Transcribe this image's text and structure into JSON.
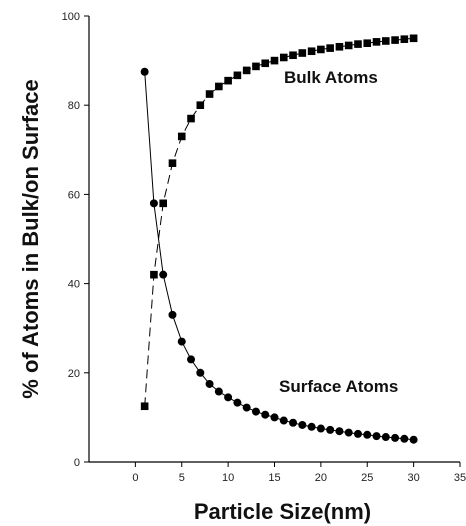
{
  "chart_data": {
    "type": "scatter",
    "xlabel": "Particle Size(nm)",
    "ylabel": "% of Atoms in Bulk/on Surface",
    "xlim": [
      -5,
      35
    ],
    "ylim": [
      0,
      100
    ],
    "xticks": [
      0,
      5,
      10,
      15,
      20,
      25,
      30,
      35
    ],
    "yticks": [
      0,
      20,
      40,
      60,
      80,
      100
    ],
    "grid": false,
    "annotations": [
      "Bulk Atoms",
      "Surface Atoms"
    ],
    "series": [
      {
        "name": "Surface Atoms",
        "marker": "circle",
        "line": "solid",
        "color": "#000000",
        "x": [
          1,
          2,
          3,
          4,
          5,
          6,
          7,
          8,
          9,
          10,
          11,
          12,
          13,
          14,
          15,
          16,
          17,
          18,
          19,
          20,
          21,
          22,
          23,
          24,
          25,
          26,
          27,
          28,
          29,
          30
        ],
        "y": [
          87.5,
          58,
          42,
          33,
          27,
          23,
          20,
          17.5,
          15.8,
          14.5,
          13.3,
          12.2,
          11.3,
          10.6,
          10,
          9.3,
          8.8,
          8.3,
          7.9,
          7.5,
          7.2,
          6.9,
          6.6,
          6.3,
          6.1,
          5.8,
          5.6,
          5.4,
          5.2,
          5
        ]
      },
      {
        "name": "Bulk Atoms",
        "marker": "square",
        "line": "dashed",
        "color": "#000000",
        "x": [
          1,
          2,
          3,
          4,
          5,
          6,
          7,
          8,
          9,
          10,
          11,
          12,
          13,
          14,
          15,
          16,
          17,
          18,
          19,
          20,
          21,
          22,
          23,
          24,
          25,
          26,
          27,
          28,
          29,
          30
        ],
        "y": [
          12.5,
          42,
          58,
          67,
          73,
          77,
          80,
          82.5,
          84.2,
          85.5,
          86.7,
          87.8,
          88.7,
          89.4,
          90,
          90.7,
          91.2,
          91.7,
          92.1,
          92.5,
          92.8,
          93.1,
          93.4,
          93.7,
          93.9,
          94.2,
          94.4,
          94.6,
          94.8,
          95
        ]
      }
    ]
  }
}
